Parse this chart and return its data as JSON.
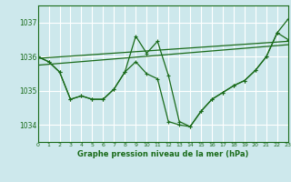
{
  "title": "Graphe pression niveau de la mer (hPa)",
  "bg_color": "#cde8ec",
  "grid_color": "#ffffff",
  "line_color": "#1a6b1a",
  "xlim": [
    0,
    23
  ],
  "ylim": [
    1033.5,
    1037.5
  ],
  "yticks": [
    1034,
    1035,
    1036,
    1037
  ],
  "xticks": [
    0,
    1,
    2,
    3,
    4,
    5,
    6,
    7,
    8,
    9,
    10,
    11,
    12,
    13,
    14,
    15,
    16,
    17,
    18,
    19,
    20,
    21,
    22,
    23
  ],
  "series1_x": [
    0,
    1,
    2,
    3,
    4,
    5,
    6,
    7,
    8,
    9,
    10,
    11,
    12,
    13,
    14,
    15,
    16,
    17,
    18,
    19,
    20,
    21,
    22,
    23
  ],
  "series1_y": [
    1036.0,
    1035.85,
    1035.55,
    1034.75,
    1034.85,
    1034.75,
    1034.75,
    1035.05,
    1035.55,
    1035.85,
    1035.5,
    1035.35,
    1034.1,
    1034.0,
    1033.95,
    1034.4,
    1034.75,
    1034.95,
    1035.15,
    1035.3,
    1035.6,
    1036.0,
    1036.7,
    1036.5
  ],
  "series2_x": [
    0,
    1,
    2,
    3,
    4,
    5,
    6,
    7,
    8,
    9,
    10,
    11,
    12,
    13,
    14,
    15,
    16,
    17,
    18,
    19,
    20,
    21,
    22,
    23
  ],
  "series2_y": [
    1036.0,
    1035.85,
    1035.55,
    1034.75,
    1034.85,
    1034.75,
    1034.75,
    1035.05,
    1035.55,
    1036.6,
    1036.1,
    1036.45,
    1035.45,
    1034.1,
    1033.95,
    1034.4,
    1034.75,
    1034.95,
    1035.15,
    1035.3,
    1035.6,
    1036.0,
    1036.7,
    1037.1
  ],
  "trend1_x": [
    0,
    23
  ],
  "trend1_y": [
    1035.95,
    1036.45
  ],
  "trend2_x": [
    0,
    23
  ],
  "trend2_y": [
    1035.75,
    1036.35
  ]
}
